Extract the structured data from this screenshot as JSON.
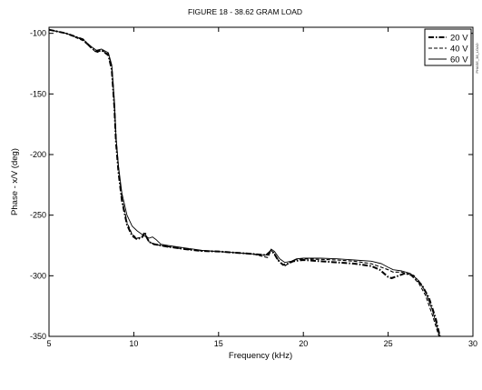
{
  "chart_data": {
    "type": "line",
    "title": "FIGURE 18 - 38.62 GRAM LOAD",
    "xlabel": "Frequency (kHz)",
    "ylabel": "Phase - x/V (deg)",
    "xlim": [
      5,
      30
    ],
    "ylim": [
      -350,
      -95
    ],
    "x_ticks": [
      5,
      10,
      15,
      20,
      25,
      30
    ],
    "y_ticks": [
      -100,
      -150,
      -200,
      -250,
      -300,
      -350
    ],
    "legend_position": "top-right",
    "grid": false,
    "side_note": "PHASE_38_LOAD",
    "series": [
      {
        "name": "20 V",
        "style": "dash-dot",
        "x": [
          5.0,
          6.0,
          7.0,
          7.5,
          7.8,
          8.1,
          8.5,
          8.7,
          8.85,
          8.95,
          9.1,
          9.3,
          9.6,
          9.9,
          10.2,
          10.5,
          10.65,
          10.75,
          10.9,
          11.2,
          12,
          13,
          14,
          15,
          16,
          17,
          17.8,
          18.05,
          18.25,
          18.5,
          18.8,
          19.1,
          19.4,
          20,
          21,
          22,
          23,
          24,
          24.5,
          25.0,
          25.2,
          25.6,
          26.0,
          26.5,
          27.0,
          27.4,
          27.8,
          28.05
        ],
        "y": [
          -97,
          -100,
          -105,
          -112,
          -115,
          -114,
          -118,
          -130,
          -160,
          -190,
          -215,
          -238,
          -258,
          -267,
          -270,
          -268,
          -264,
          -268,
          -272,
          -274,
          -276,
          -278,
          -279.5,
          -280,
          -281,
          -282,
          -283,
          -280,
          -281,
          -287,
          -291,
          -290,
          -288,
          -287,
          -288,
          -289,
          -290,
          -292,
          -295,
          -301,
          -302,
          -300,
          -298,
          -300,
          -308,
          -318,
          -335,
          -350
        ]
      },
      {
        "name": "40 V",
        "style": "dashed",
        "x": [
          5.0,
          6.0,
          7.0,
          7.5,
          7.8,
          8.1,
          8.5,
          8.7,
          8.85,
          8.95,
          9.1,
          9.3,
          9.6,
          9.9,
          10.2,
          10.5,
          10.65,
          10.75,
          10.9,
          11.2,
          12,
          13,
          14,
          15,
          16,
          17,
          17.9,
          18.1,
          18.3,
          18.6,
          18.9,
          19.2,
          19.5,
          20,
          21,
          22,
          23,
          24,
          24.6,
          25.0,
          25.3,
          25.8,
          26.3,
          26.8,
          27.2,
          27.6,
          28.0
        ],
        "y": [
          -97,
          -100,
          -106,
          -112,
          -116,
          -114,
          -117,
          -128,
          -158,
          -188,
          -212,
          -236,
          -256,
          -266,
          -269,
          -268,
          -265,
          -268,
          -272,
          -274,
          -276,
          -278,
          -279.5,
          -280,
          -281,
          -282,
          -285,
          -279,
          -282,
          -289,
          -292,
          -289,
          -287,
          -286,
          -286.5,
          -287,
          -288,
          -290,
          -293,
          -295,
          -297,
          -297,
          -299,
          -306,
          -316,
          -332,
          -350
        ]
      },
      {
        "name": "60 V",
        "style": "solid",
        "x": [
          5.0,
          6.0,
          7.0,
          7.5,
          7.8,
          8.1,
          8.5,
          8.7,
          8.85,
          8.95,
          9.1,
          9.3,
          9.6,
          9.9,
          10.2,
          10.6,
          10.9,
          11.1,
          11.3,
          11.6,
          12,
          13,
          14,
          15,
          16,
          17,
          17.9,
          18.1,
          18.3,
          18.6,
          18.9,
          19.3,
          19.6,
          20,
          21,
          22,
          23,
          24,
          24.6,
          25.0,
          25.3,
          25.8,
          26.3,
          26.8,
          27.2,
          27.6,
          28.05
        ],
        "y": [
          -97,
          -100,
          -105,
          -111,
          -114,
          -113,
          -116,
          -126,
          -155,
          -185,
          -210,
          -232,
          -250,
          -259,
          -263,
          -267,
          -269,
          -268,
          -270,
          -274,
          -275,
          -277,
          -279,
          -280,
          -281,
          -282,
          -283,
          -278,
          -280,
          -286,
          -289,
          -288,
          -286,
          -285.5,
          -285.5,
          -286,
          -287,
          -288,
          -290,
          -293,
          -295,
          -296,
          -298,
          -304,
          -313,
          -328,
          -350
        ]
      }
    ]
  }
}
